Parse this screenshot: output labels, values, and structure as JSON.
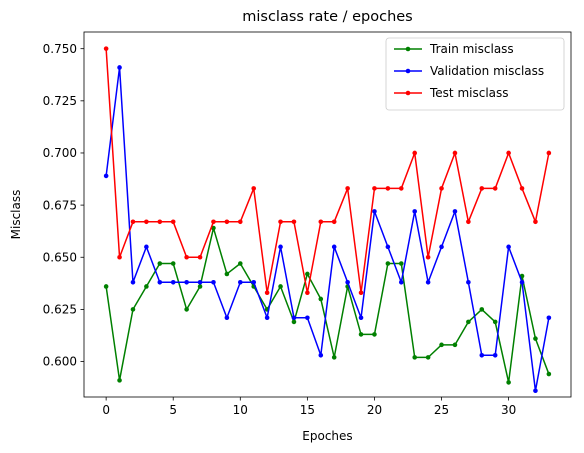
{
  "chart_data": {
    "type": "line",
    "title": "misclass rate / epoches",
    "xlabel": "Epoches",
    "ylabel": "Misclass",
    "xlim": [
      -1.65,
      34.65
    ],
    "ylim": [
      0.583,
      0.758
    ],
    "xticks": [
      0,
      5,
      10,
      15,
      20,
      25,
      30
    ],
    "yticks": [
      0.6,
      0.625,
      0.65,
      0.675,
      0.7,
      0.725,
      0.75
    ],
    "ytick_labels": [
      "0.600",
      "0.625",
      "0.650",
      "0.675",
      "0.700",
      "0.725",
      "0.750"
    ],
    "grid": false,
    "legend_position": "top-right",
    "x": [
      0,
      1,
      2,
      3,
      4,
      5,
      6,
      7,
      8,
      9,
      10,
      11,
      12,
      13,
      14,
      15,
      16,
      17,
      18,
      19,
      20,
      21,
      22,
      23,
      24,
      25,
      26,
      27,
      28,
      29,
      30,
      31,
      32,
      33
    ],
    "series": [
      {
        "name": "Train misclass",
        "color": "#008000",
        "values": [
          0.636,
          0.591,
          0.625,
          0.636,
          0.647,
          0.647,
          0.625,
          0.636,
          0.664,
          0.642,
          0.647,
          0.636,
          0.625,
          0.636,
          0.619,
          0.642,
          0.63,
          0.602,
          0.636,
          0.613,
          0.613,
          0.647,
          0.647,
          0.602,
          0.602,
          0.608,
          0.608,
          0.619,
          0.625,
          0.619,
          0.59,
          0.641,
          0.611,
          0.594
        ]
      },
      {
        "name": "Validation misclass",
        "color": "#0000ff",
        "values": [
          0.689,
          0.741,
          0.638,
          0.655,
          0.638,
          0.638,
          0.638,
          0.638,
          0.638,
          0.621,
          0.638,
          0.638,
          0.621,
          0.655,
          0.621,
          0.621,
          0.603,
          0.655,
          0.638,
          0.621,
          0.672,
          0.655,
          0.638,
          0.672,
          0.638,
          0.655,
          0.672,
          0.638,
          0.603,
          0.603,
          0.655,
          0.638,
          0.586,
          0.621
        ]
      },
      {
        "name": "Test misclass",
        "color": "#ff0000",
        "values": [
          0.75,
          0.65,
          0.667,
          0.667,
          0.667,
          0.667,
          0.65,
          0.65,
          0.667,
          0.667,
          0.667,
          0.683,
          0.633,
          0.667,
          0.667,
          0.633,
          0.667,
          0.667,
          0.683,
          0.633,
          0.683,
          0.683,
          0.683,
          0.7,
          0.65,
          0.683,
          0.7,
          0.667,
          0.683,
          0.683,
          0.7,
          0.683,
          0.667,
          0.7
        ]
      }
    ]
  }
}
